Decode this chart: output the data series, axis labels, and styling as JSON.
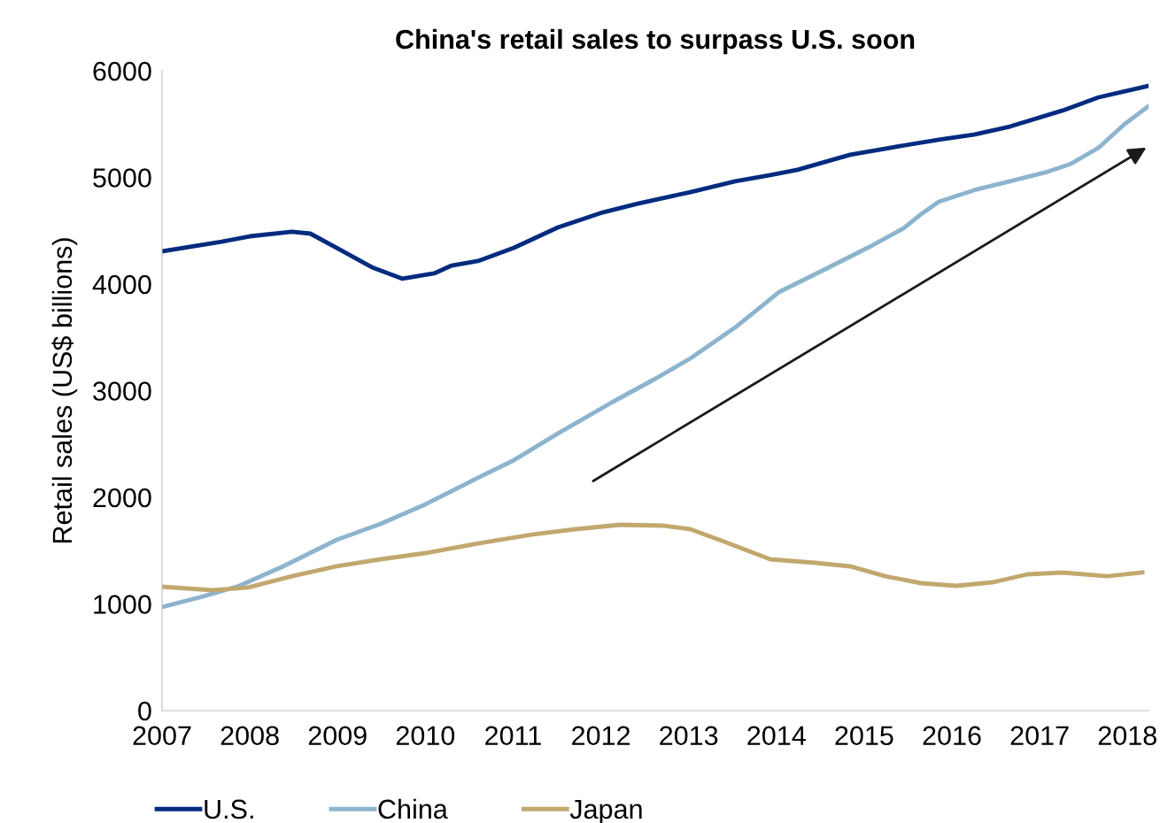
{
  "chart_data": {
    "type": "line",
    "title": "China's retail sales to surpass U.S. soon",
    "ylabel": "Retail sales (US$ billions)",
    "xlim": [
      2007,
      2018.24
    ],
    "xticks": [
      2007,
      2008,
      2009,
      2010,
      2011,
      2012,
      2013,
      2014,
      2015,
      2016,
      2017,
      2018
    ],
    "ylim": [
      0,
      6000
    ],
    "yticks": [
      0,
      1000,
      2000,
      3000,
      4000,
      5000,
      6000
    ],
    "grid": false,
    "legend": "bottom",
    "series": [
      {
        "name": "U.S.",
        "color": "#002b7f",
        "x": [
          2007.0,
          2007.68,
          2008.0,
          2008.48,
          2008.69,
          2008.99,
          2009.39,
          2009.74,
          2010.1,
          2010.3,
          2010.6,
          2011.01,
          2011.51,
          2012.02,
          2012.42,
          2013.02,
          2013.53,
          2013.93,
          2014.24,
          2014.84,
          2015.35,
          2015.85,
          2016.25,
          2016.66,
          2017.26,
          2017.67,
          2018.24
        ],
        "values": [
          4307,
          4398,
          4448,
          4490,
          4473,
          4340,
          4158,
          4050,
          4100,
          4174,
          4216,
          4340,
          4531,
          4672,
          4755,
          4863,
          4963,
          5021,
          5071,
          5212,
          5286,
          5353,
          5402,
          5477,
          5627,
          5751,
          5859
        ]
      },
      {
        "name": "China",
        "color": "#8db4ce",
        "x": [
          2007.0,
          2007.47,
          2007.88,
          2008.38,
          2008.99,
          2009.49,
          2010.0,
          2010.6,
          2011.01,
          2011.51,
          2012.12,
          2012.62,
          2013.02,
          2013.53,
          2014.03,
          2014.54,
          2015.04,
          2015.45,
          2015.65,
          2015.85,
          2016.25,
          2016.66,
          2017.06,
          2017.36,
          2017.67,
          2017.97,
          2018.24
        ],
        "values": [
          971,
          1071,
          1170,
          1353,
          1602,
          1751,
          1934,
          2183,
          2349,
          2598,
          2888,
          3112,
          3303,
          3593,
          3925,
          4133,
          4340,
          4523,
          4656,
          4772,
          4880,
          4963,
          5046,
          5129,
          5278,
          5502,
          5668
        ]
      },
      {
        "name": "Japan",
        "color": "#c2a86e",
        "x": [
          2007.0,
          2007.58,
          2007.98,
          2008.48,
          2008.99,
          2009.49,
          2010.0,
          2010.6,
          2011.21,
          2011.71,
          2012.22,
          2012.72,
          2013.02,
          2013.43,
          2013.93,
          2014.44,
          2014.84,
          2015.24,
          2015.65,
          2016.05,
          2016.46,
          2016.86,
          2017.26,
          2017.77,
          2018.17
        ],
        "values": [
          1162,
          1129,
          1154,
          1261,
          1353,
          1419,
          1477,
          1568,
          1651,
          1701,
          1743,
          1734,
          1701,
          1577,
          1419,
          1386,
          1353,
          1261,
          1195,
          1170,
          1203,
          1278,
          1295,
          1261,
          1295
        ]
      }
    ]
  }
}
